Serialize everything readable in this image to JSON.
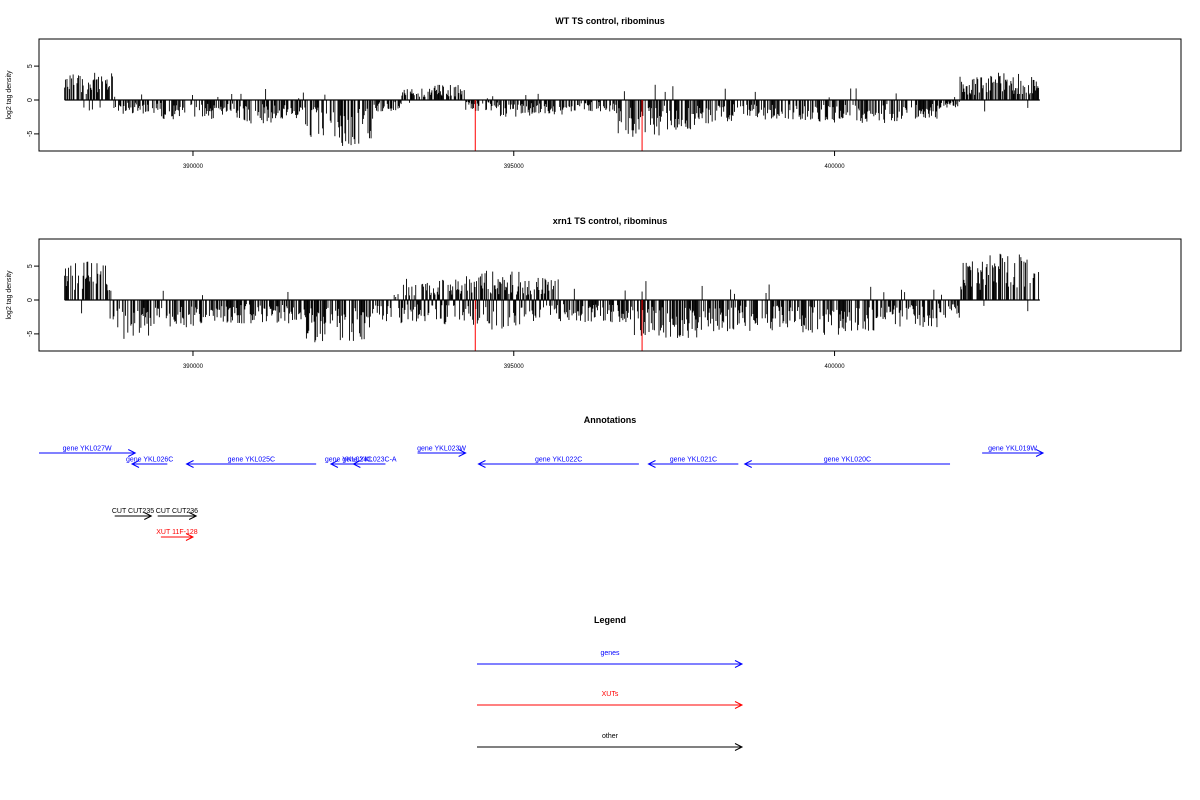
{
  "colors": {
    "genes": "#0000ff",
    "xuts": "#ff0000",
    "other": "#000000",
    "marker": "#ff0000",
    "bars": "#000000"
  },
  "chart_data": [
    {
      "type": "bar",
      "title": "WT TS control, ribominus",
      "xlabel": "",
      "ylabel": "log2 tag density",
      "xlim": [
        387600,
        405400
      ],
      "ylim": [
        -8,
        9
      ],
      "xticks": [
        390000,
        395000,
        400000
      ],
      "xtick_labels": [
        "390000",
        "395000",
        "400000"
      ],
      "yticks": [
        -5,
        0,
        5
      ],
      "ytick_labels": [
        "-5",
        "0",
        "5"
      ],
      "grid": false,
      "markers_x": [
        394400,
        397000
      ],
      "marker_value": -7.5,
      "profile": [
        [
          388000,
          3.5,
          "up"
        ],
        [
          388500,
          3.5,
          "up"
        ],
        [
          389000,
          -1.8,
          "down"
        ],
        [
          390000,
          -2.5,
          "down"
        ],
        [
          390500,
          -2.5,
          "down"
        ],
        [
          391000,
          -3,
          "down"
        ],
        [
          391500,
          -2.5,
          "down"
        ],
        [
          392000,
          -5,
          "down"
        ],
        [
          392600,
          -6,
          "down"
        ],
        [
          393000,
          -1.5,
          "down"
        ],
        [
          393500,
          1.5,
          "up"
        ],
        [
          394000,
          2,
          "up"
        ],
        [
          394500,
          -1.5,
          "down"
        ],
        [
          395000,
          -2.2,
          "down"
        ],
        [
          395600,
          -2,
          "down"
        ],
        [
          396200,
          -1.5,
          "down"
        ],
        [
          397000,
          -5,
          "down"
        ],
        [
          397600,
          -4,
          "down"
        ],
        [
          398200,
          -3,
          "down"
        ],
        [
          399000,
          -2.5,
          "down"
        ],
        [
          400000,
          -3,
          "down"
        ],
        [
          400800,
          -3,
          "down"
        ],
        [
          401400,
          -2.5,
          "down"
        ],
        [
          401900,
          -1,
          "down"
        ],
        [
          402000,
          3,
          "up"
        ],
        [
          402800,
          3.5,
          "up"
        ],
        [
          403200,
          3,
          "up"
        ]
      ]
    },
    {
      "type": "bar",
      "title": "xrn1 TS control, ribominus",
      "xlabel": "",
      "ylabel": "log2 tag density",
      "xlim": [
        387600,
        405400
      ],
      "ylim": [
        -8,
        9
      ],
      "xticks": [
        390000,
        395000,
        400000
      ],
      "xtick_labels": [
        "390000",
        "395000",
        "400000"
      ],
      "yticks": [
        -5,
        0,
        5
      ],
      "ytick_labels": [
        "-5",
        "0",
        "5"
      ],
      "grid": false,
      "markers_x": [
        394400,
        397000
      ],
      "marker_value": -7.5,
      "profile": [
        [
          388000,
          5,
          "up"
        ],
        [
          388500,
          5,
          "up"
        ],
        [
          389000,
          -5,
          "down"
        ],
        [
          389700,
          -3.5,
          "down"
        ],
        [
          390500,
          -3,
          "down"
        ],
        [
          391000,
          -3,
          "down"
        ],
        [
          391500,
          -3,
          "down"
        ],
        [
          392000,
          -5.5,
          "down"
        ],
        [
          392600,
          -6,
          "down"
        ],
        [
          393000,
          -3,
          "down"
        ],
        [
          393500,
          3,
          "mix"
        ],
        [
          394200,
          3.5,
          "mix"
        ],
        [
          394800,
          4,
          "mix"
        ],
        [
          395400,
          3,
          "mix"
        ],
        [
          396000,
          -3,
          "down"
        ],
        [
          396700,
          -3,
          "down"
        ],
        [
          397000,
          -5,
          "down"
        ],
        [
          397600,
          -5,
          "down"
        ],
        [
          398300,
          -4,
          "down"
        ],
        [
          399000,
          -4,
          "down"
        ],
        [
          399800,
          -4.5,
          "down"
        ],
        [
          400500,
          -4,
          "down"
        ],
        [
          401300,
          -3.5,
          "down"
        ],
        [
          401900,
          -2.5,
          "down"
        ],
        [
          402000,
          5,
          "up"
        ],
        [
          402800,
          6,
          "up"
        ],
        [
          403200,
          5,
          "up"
        ]
      ]
    }
  ],
  "annotations": {
    "title": "Annotations",
    "genes": [
      {
        "label": "gene YKL027W",
        "start": 387600,
        "end": 389100,
        "strand": "+",
        "row": 0
      },
      {
        "label": "gene YKL026C",
        "start": 389050,
        "end": 389600,
        "strand": "-",
        "row": 1
      },
      {
        "label": "gene YKL025C",
        "start": 389900,
        "end": 391920,
        "strand": "-",
        "row": 1
      },
      {
        "label": "gene YKL024C",
        "start": 392150,
        "end": 392700,
        "strand": "-",
        "row": 1
      },
      {
        "label": "gene YKL023C-A",
        "start": 392500,
        "end": 393000,
        "strand": "-",
        "row": 1
      },
      {
        "label": "gene YKL023W",
        "start": 393500,
        "end": 394250,
        "strand": "+",
        "row": 0
      },
      {
        "label": "gene YKL022C",
        "start": 394450,
        "end": 396950,
        "strand": "-",
        "row": 1
      },
      {
        "label": "gene YKL021C",
        "start": 397100,
        "end": 398500,
        "strand": "-",
        "row": 1
      },
      {
        "label": "gene YKL020C",
        "start": 398600,
        "end": 401800,
        "strand": "-",
        "row": 1
      },
      {
        "label": "gene YKL019W",
        "start": 402300,
        "end": 403250,
        "strand": "+",
        "row": 0
      }
    ],
    "others": [
      {
        "label": "CUT CUT235",
        "start": 388780,
        "end": 389350,
        "strand": "+",
        "row": 0
      },
      {
        "label": "CUT CUT236",
        "start": 389450,
        "end": 390050,
        "strand": "+",
        "row": 0
      }
    ],
    "xuts": [
      {
        "label": "XUT 11F-128",
        "start": 389500,
        "end": 390000,
        "strand": "+",
        "row": 0
      }
    ]
  },
  "legend": {
    "title": "Legend",
    "items": [
      {
        "label": "genes",
        "color": "#0000ff"
      },
      {
        "label": "XUTs",
        "color": "#ff0000"
      },
      {
        "label": "other",
        "color": "#000000"
      }
    ]
  }
}
